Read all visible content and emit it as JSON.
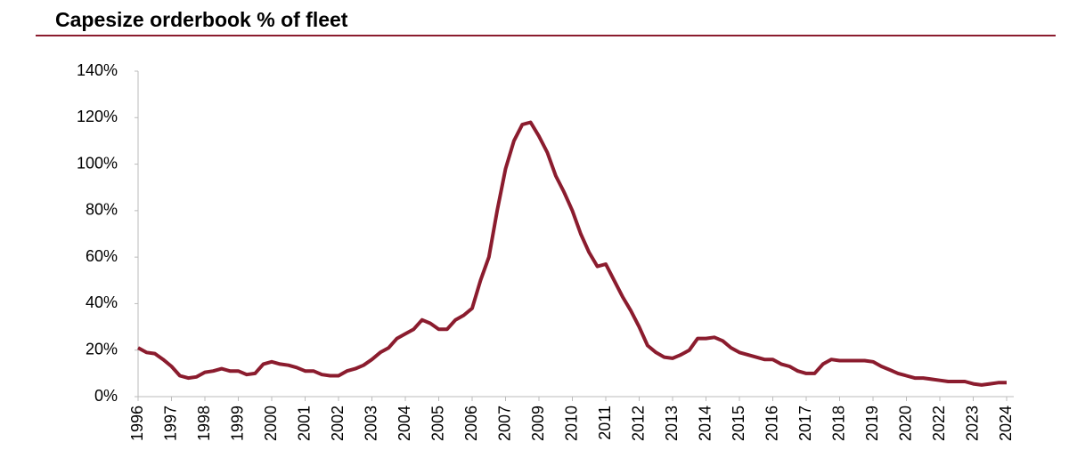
{
  "chart_data": {
    "type": "line",
    "title": "Capesize orderbook % of fleet",
    "categories": [
      "1996",
      null,
      null,
      null,
      "1997",
      null,
      null,
      null,
      "1998",
      null,
      null,
      null,
      "1999",
      null,
      null,
      null,
      "2000",
      null,
      null,
      null,
      "2001",
      null,
      null,
      null,
      "2002",
      null,
      null,
      null,
      "2003",
      null,
      null,
      null,
      "2004",
      null,
      null,
      null,
      "2005",
      null,
      null,
      null,
      "2006",
      null,
      null,
      null,
      "2007",
      null,
      null,
      null,
      "2009",
      null,
      null,
      null,
      "2010",
      null,
      null,
      null,
      "2011",
      null,
      null,
      null,
      "2012",
      null,
      null,
      null,
      "2013",
      null,
      null,
      null,
      "2014",
      null,
      null,
      null,
      "2015",
      null,
      null,
      null,
      "2016",
      null,
      null,
      null,
      "2017",
      null,
      null,
      null,
      "2018",
      null,
      null,
      null,
      "2019",
      null,
      null,
      null,
      "2020",
      null,
      null,
      null,
      "2022",
      null,
      null,
      null,
      "2023",
      null,
      null,
      null,
      "2024"
    ],
    "series": [
      {
        "name": "Capesize orderbook % of fleet",
        "color": "#8b1c2e",
        "values": [
          21,
          19,
          18.5,
          16,
          13,
          9,
          8,
          8.5,
          10.5,
          11,
          12,
          11,
          11,
          9.5,
          10,
          14,
          15,
          14,
          13.5,
          12.5,
          11,
          11,
          9.5,
          9,
          9,
          11,
          12,
          13.5,
          16,
          19,
          21,
          25,
          27,
          29,
          33,
          31.5,
          29,
          29,
          33,
          35,
          38,
          50,
          60,
          80,
          98,
          110,
          117,
          118,
          112,
          105,
          95,
          88,
          80,
          70,
          62,
          56,
          57,
          50,
          43,
          37,
          30,
          22,
          19,
          17,
          16.5,
          18,
          20,
          25,
          25,
          25.5,
          24,
          21,
          19,
          18,
          17,
          16,
          16,
          14,
          13,
          11,
          10,
          10,
          14,
          16,
          15.5,
          15.5,
          15.5,
          15.5,
          15,
          13,
          11.5,
          10,
          9,
          8,
          8,
          7.5,
          7,
          6.5,
          6.5,
          6.5,
          5.5,
          5,
          5.5,
          6,
          6
        ]
      }
    ],
    "ylim": [
      0,
      140
    ],
    "yticks": [
      {
        "value": 0,
        "label": "0%"
      },
      {
        "value": 20,
        "label": "20%"
      },
      {
        "value": 40,
        "label": "40%"
      },
      {
        "value": 60,
        "label": "60%"
      },
      {
        "value": 80,
        "label": "80%"
      },
      {
        "value": 100,
        "label": "100%"
      },
      {
        "value": 120,
        "label": "120%"
      },
      {
        "value": 140,
        "label": "140%"
      }
    ],
    "grid": false
  }
}
